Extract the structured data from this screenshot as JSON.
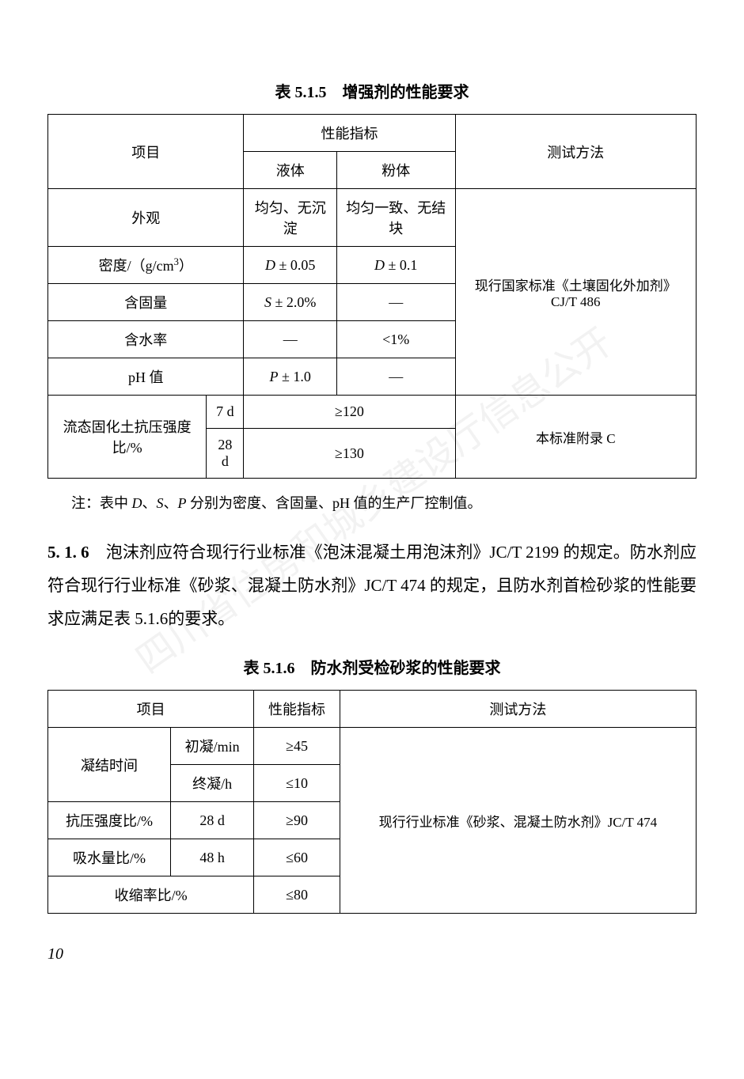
{
  "watermark": "四川省住房和城乡建设厅信息公开",
  "table1": {
    "title": "表 5.1.5　增强剂的性能要求",
    "header": {
      "col1": "项目",
      "col2": "性能指标",
      "col2a": "液体",
      "col2b": "粉体",
      "col3": "测试方法"
    },
    "rows": {
      "r1": {
        "label": "外观",
        "liquid": "均匀、无沉淀",
        "powder": "均匀一致、无结块"
      },
      "r2": {
        "label_left": "密度/（g/cm",
        "label_right": "）",
        "sup": "3",
        "liquid_pre": "D",
        "liquid_post": " ± 0.05",
        "powder_pre": "D",
        "powder_post": " ± 0.1"
      },
      "r3": {
        "label": "含固量",
        "liquid_pre": "S",
        "liquid_post": " ± 2.0%",
        "powder": "—"
      },
      "r4": {
        "label": "含水率",
        "liquid": "—",
        "powder": "<1%"
      },
      "r5": {
        "label": "pH 值",
        "liquid_pre": "P",
        "liquid_post": " ± 1.0",
        "powder": "—"
      },
      "r6": {
        "label": "流态固化土抗压强度比/%",
        "sub1_age": "7 d",
        "sub1_val": "≥120",
        "sub2_age": "28 d",
        "sub2_val": "≥130"
      },
      "method1": "现行国家标准《土壤固化外加剂》CJ/T 486",
      "method2": "本标准附录 C"
    },
    "note_pre": "注：表中 ",
    "note_d": "D",
    "note_sep1": "、",
    "note_s": "S",
    "note_sep2": "、",
    "note_p": "P",
    "note_post": " 分别为密度、含固量、pH 值的生产厂控制值。"
  },
  "section516": {
    "num": "5. 1. 6",
    "text": "　泡沫剂应符合现行行业标准《泡沫混凝土用泡沫剂》JC/T 2199 的规定。防水剂应符合现行行业标准《砂浆、混凝土防水剂》JC/T 474 的规定，且防水剂首检砂浆的性能要求应满足表 5.1.6的要求。"
  },
  "table2": {
    "title": "表 5.1.6　防水剂受检砂浆的性能要求",
    "header": {
      "c1": "项目",
      "c2": "性能指标",
      "c3": "测试方法"
    },
    "rows": {
      "r1": {
        "a": "凝结时间",
        "b": "初凝/min",
        "c": "≥45"
      },
      "r2": {
        "b": "终凝/h",
        "c": "≤10"
      },
      "r3": {
        "a": "抗压强度比/%",
        "b": "28 d",
        "c": "≥90"
      },
      "r4": {
        "a": "吸水量比/%",
        "b": "48 h",
        "c": "≤60"
      },
      "r5": {
        "a": "收缩率比/%",
        "c": "≤80"
      },
      "method": "现行行业标准《砂浆、混凝土防水剂》JC/T 474"
    }
  },
  "page_number": "10"
}
